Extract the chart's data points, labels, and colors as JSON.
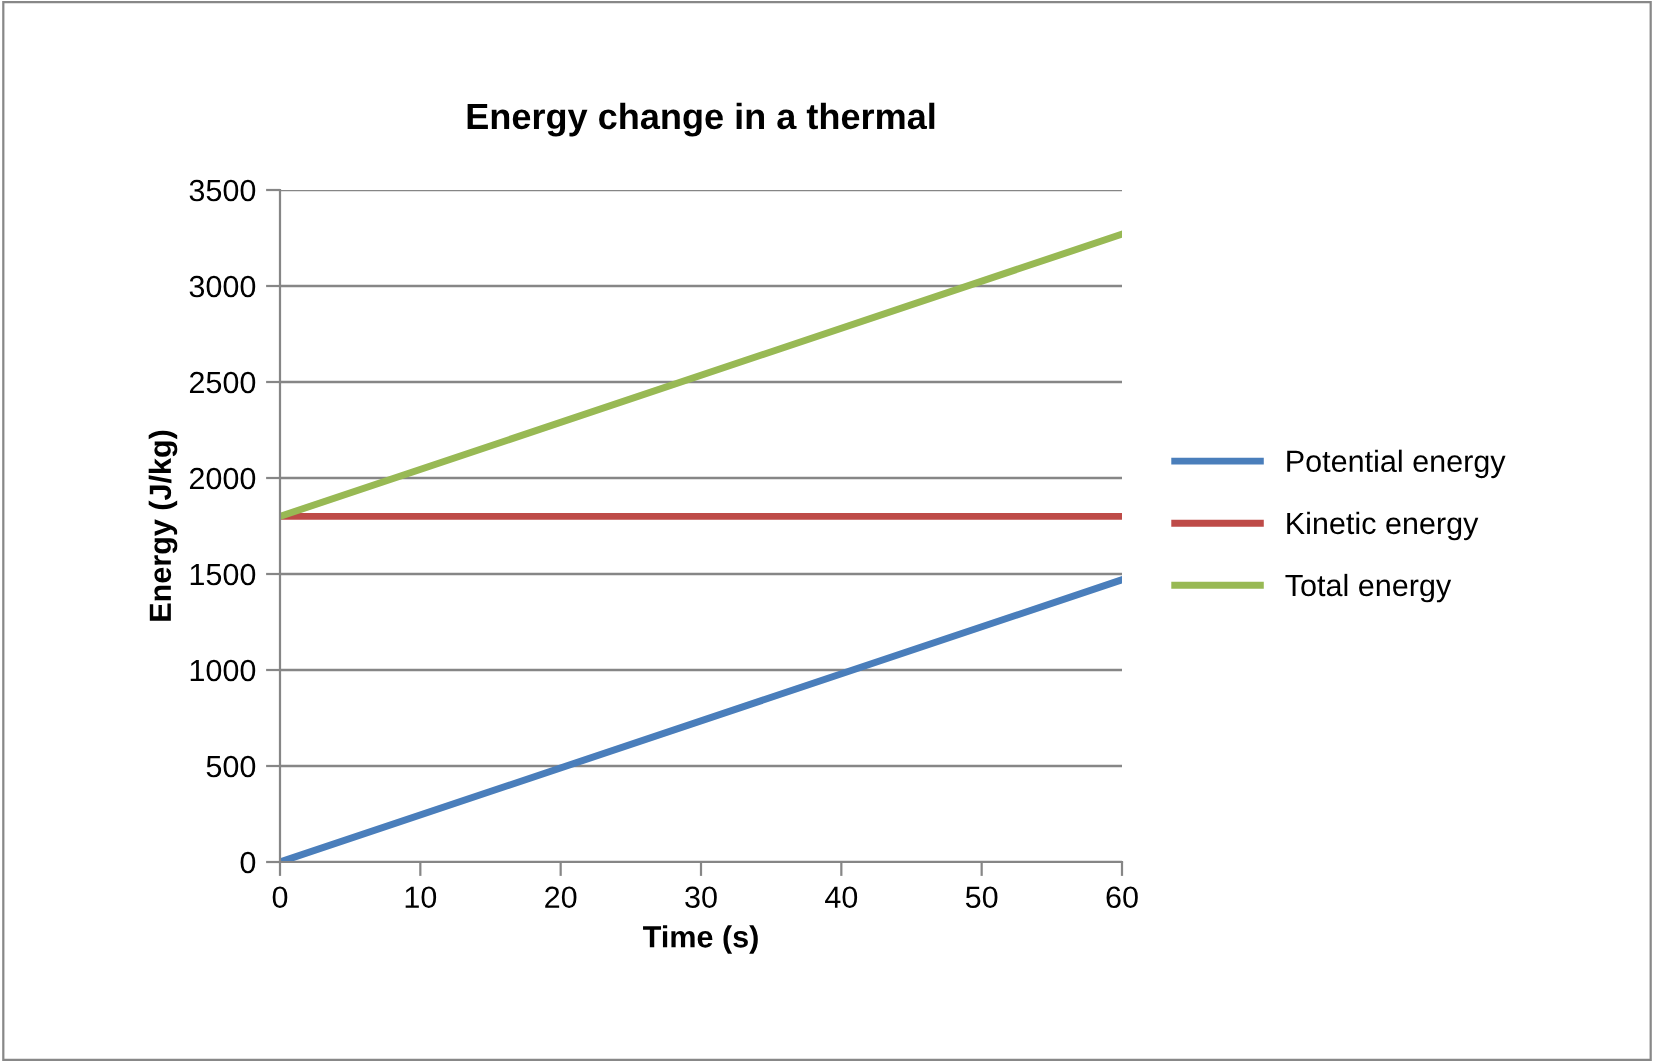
{
  "chart_data": {
    "type": "line",
    "title": "Energy change in a thermal",
    "xlabel": "Time (s)",
    "ylabel": "Energy (J/kg)",
    "x": [
      0,
      60
    ],
    "series": [
      {
        "name": "Potential energy",
        "color": "#4a7ebb",
        "values": [
          0,
          1470
        ]
      },
      {
        "name": "Kinetic energy",
        "color": "#be4b48",
        "values": [
          1800,
          1800
        ]
      },
      {
        "name": "Total energy",
        "color": "#98b954",
        "values": [
          1800,
          3270
        ]
      }
    ],
    "xlim": [
      0,
      60
    ],
    "xticks": [
      0,
      10,
      20,
      30,
      40,
      50,
      60
    ],
    "ylim": [
      0,
      3500
    ],
    "yticks": [
      0,
      500,
      1000,
      1500,
      2000,
      2500,
      3000,
      3500
    ],
    "grid": "y",
    "legend": "right",
    "marker": "none",
    "line_style": "solid"
  }
}
